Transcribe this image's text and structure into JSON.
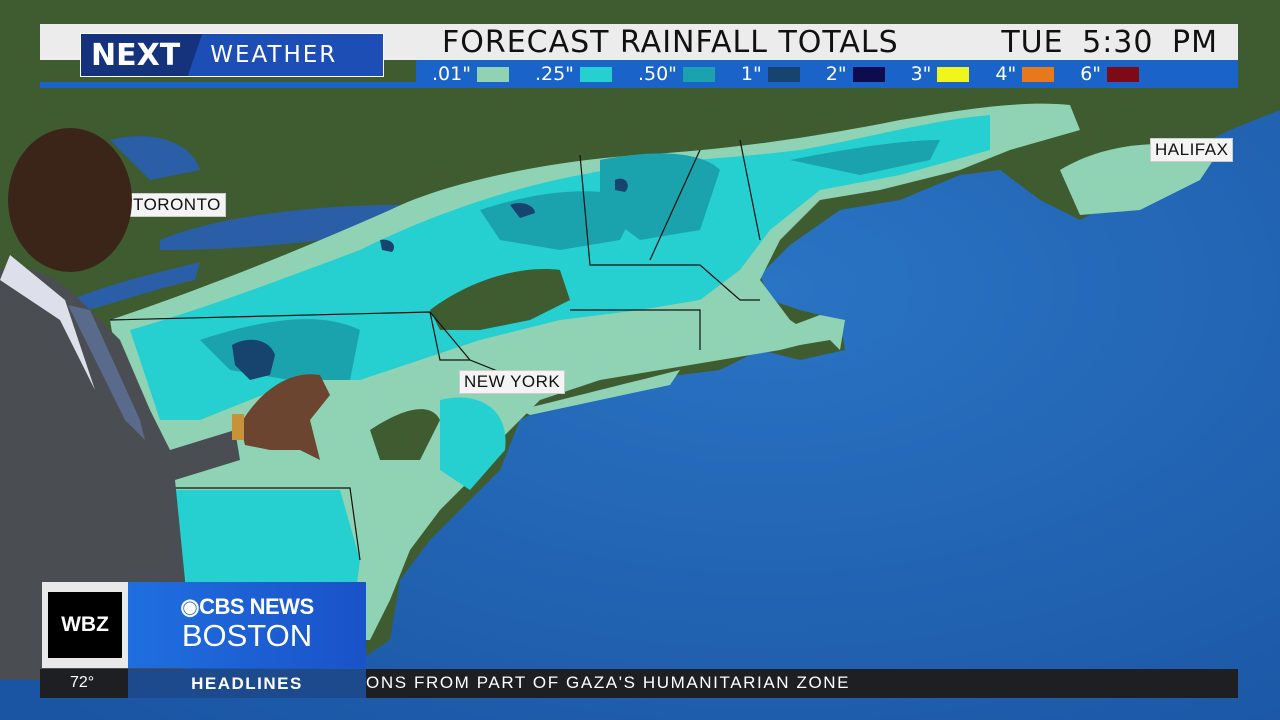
{
  "header": {
    "logo_next": "NEXT",
    "logo_weather": "WEATHER",
    "title": "FORECAST RAINFALL TOTALS",
    "day": "TUE",
    "time": "5:30 PM"
  },
  "legend": [
    {
      "label": ".01\"",
      "color": "#8fd3b4"
    },
    {
      "label": ".25\"",
      "color": "#26d0d0"
    },
    {
      "label": ".50\"",
      "color": "#1aa3ad"
    },
    {
      "label": "1\"",
      "color": "#17436f"
    },
    {
      "label": "2\"",
      "color": "#0c0c4e"
    },
    {
      "label": "3\"",
      "color": "#f0f51c"
    },
    {
      "label": "4\"",
      "color": "#e8791a"
    },
    {
      "label": "6\"",
      "color": "#7d0a14"
    }
  ],
  "map": {
    "cities": [
      "TORONTO",
      "NEW YORK",
      "HALIFAX"
    ],
    "ocean_color": "#1d5fae",
    "land_color": "#3f5c30"
  },
  "station": {
    "call_letters": "WBZ",
    "network": "CBS NEWS",
    "city": "BOSTON"
  },
  "ticker": {
    "temperature": "72°",
    "section": "HEADLINES",
    "crawl": "ONS FROM PART OF GAZA'S HUMANITARIAN ZONE"
  }
}
